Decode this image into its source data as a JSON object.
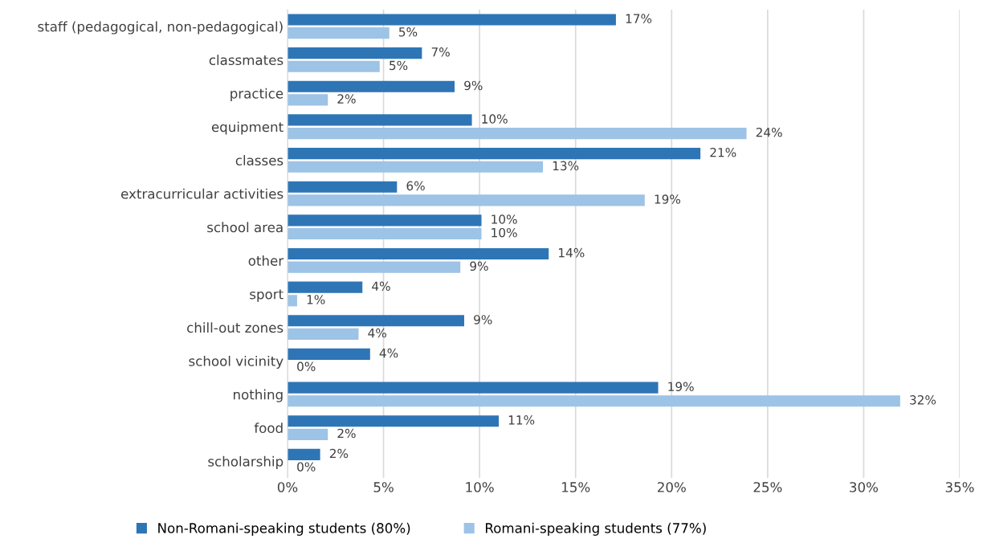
{
  "chart_data": {
    "type": "bar",
    "orientation": "horizontal",
    "categories": [
      "staff (pedagogical, non-pedagogical)",
      "classmates",
      "practice",
      "equipment",
      "classes",
      "extracurricular activities",
      "school area",
      "other",
      "sport",
      "chill-out zones",
      "school vicinity",
      "nothing",
      "food",
      "scholarship"
    ],
    "series": [
      {
        "name": "Non-Romani-speaking students (80%)",
        "color": "#2e75b6",
        "values": [
          17.1,
          7.0,
          8.7,
          9.6,
          21.5,
          5.7,
          10.1,
          13.6,
          3.9,
          9.2,
          4.3,
          19.3,
          11.0,
          1.7
        ],
        "value_labels": [
          "17%",
          "7%",
          "9%",
          "10%",
          "21%",
          "6%",
          "10%",
          "14%",
          "4%",
          "9%",
          "4%",
          "19%",
          "11%",
          "2%"
        ]
      },
      {
        "name": "Romani-speaking students (77%)",
        "color": "#9dc3e6",
        "values": [
          5.3,
          4.8,
          2.1,
          23.9,
          13.3,
          18.6,
          10.1,
          9.0,
          0.5,
          3.7,
          0,
          31.9,
          2.1,
          0
        ],
        "value_labels": [
          "5%",
          "5%",
          "2%",
          "24%",
          "13%",
          "19%",
          "10%",
          "9%",
          "1%",
          "4%",
          "0%",
          "32%",
          "2%",
          "0%"
        ]
      }
    ],
    "xlim": [
      0,
      35
    ],
    "xticks": [
      {
        "value": 0,
        "label": "0%"
      },
      {
        "value": 5,
        "label": "5%"
      },
      {
        "value": 10,
        "label": "10%"
      },
      {
        "value": 15,
        "label": "15%"
      },
      {
        "value": 20,
        "label": "20%"
      },
      {
        "value": 25,
        "label": "25%"
      },
      {
        "value": 30,
        "label": "30%"
      },
      {
        "value": 35,
        "label": "35%"
      }
    ],
    "grid": "x",
    "legend": "bottom"
  }
}
